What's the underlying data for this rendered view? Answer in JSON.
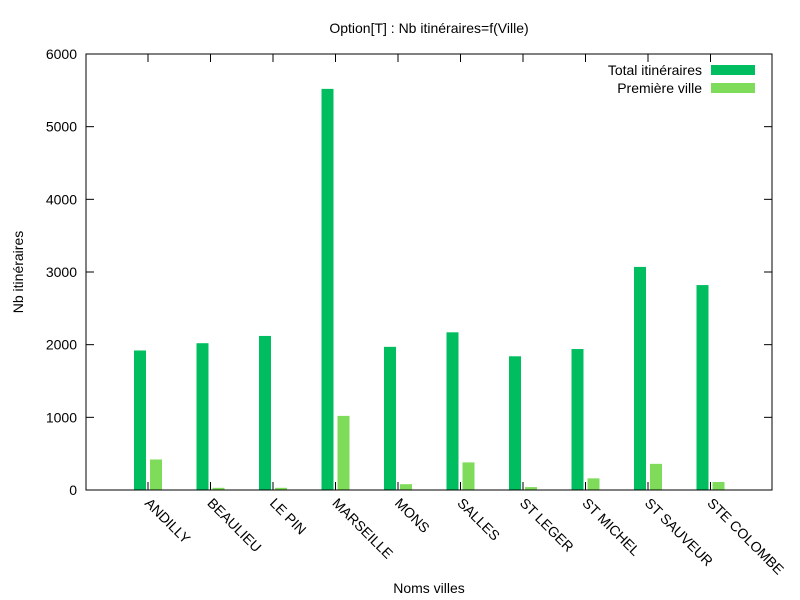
{
  "chart_data": {
    "type": "bar",
    "title": "Option[T] : Nb itinéraires=f(Ville)",
    "xlabel": "Noms villes",
    "ylabel": "Nb itinéraires",
    "ylim": [
      0,
      6000
    ],
    "yticks": [
      0,
      1000,
      2000,
      3000,
      4000,
      5000,
      6000
    ],
    "grid": false,
    "legend_position": "top-right",
    "categories": [
      "ANDILLY",
      "BEAULIEU",
      "LE PIN",
      "MARSEILLE",
      "MONS",
      "SALLES",
      "ST LEGER",
      "ST MICHEL",
      "ST SAUVEUR",
      "STE COLOMBE"
    ],
    "series": [
      {
        "name": "Total itinéraires",
        "color": "#00be5f",
        "values": [
          1920,
          2020,
          2120,
          5520,
          1970,
          2170,
          1840,
          1940,
          3070,
          2820
        ]
      },
      {
        "name": "Première ville",
        "color": "#7fdc5a",
        "values": [
          420,
          30,
          30,
          1020,
          80,
          380,
          40,
          160,
          360,
          110
        ]
      }
    ]
  }
}
